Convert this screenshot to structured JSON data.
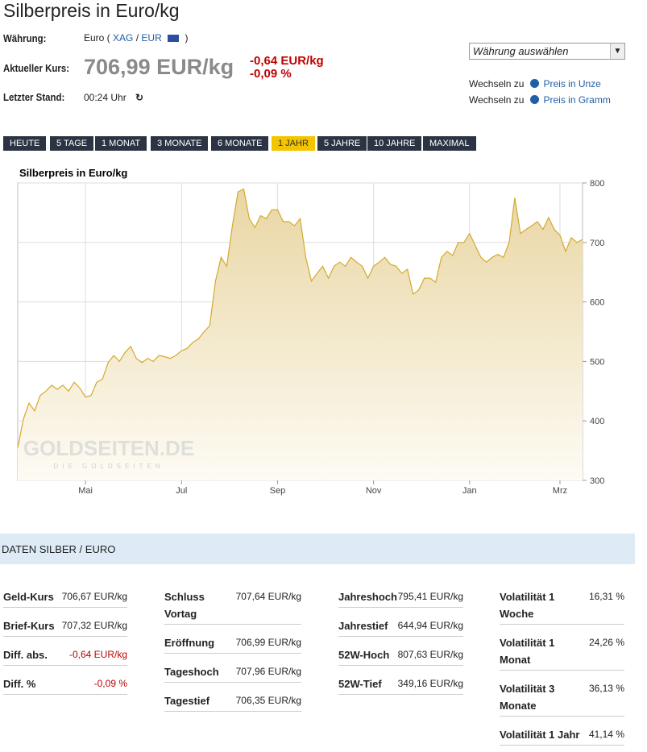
{
  "header": {
    "title": "Silberpreis in Euro/kg",
    "currency": {
      "label": "Währung:",
      "text": "Euro (",
      "links": [
        "XAG",
        "EUR"
      ],
      "sep": "/",
      "end": ")"
    },
    "price": {
      "label": "Aktueller Kurs:",
      "value": "706,99 EUR/kg",
      "change_abs": "-0,64 EUR/kg",
      "change_pct": "-0,09 %"
    },
    "stand": {
      "label": "Letzter Stand:",
      "value": "00:24 Uhr"
    },
    "select": "Währung auswählen",
    "switch": [
      {
        "text": "Wechseln zu",
        "link": "Preis in Unze"
      },
      {
        "text": "Wechseln zu",
        "link": "Preis in Gramm"
      }
    ]
  },
  "tabs": {
    "items": [
      "HEUTE",
      "5 TAGE",
      "1 MONAT",
      "3 MONATE",
      "6 MONATE",
      "1 JAHR",
      "5 JAHRE",
      "10 JAHRE",
      "MAXIMAL"
    ],
    "active": 5
  },
  "chart_data": {
    "type": "area",
    "title": "Silberpreis in Euro/kg",
    "watermark": [
      "GOLDSEITEN.DE",
      "DIE GOLDSEITEN"
    ],
    "color": "#d4a92e",
    "grid": true,
    "y_axis_side": "right",
    "categories": [
      null,
      null,
      null,
      null,
      null,
      null,
      null,
      null,
      null,
      null,
      null,
      null,
      "Mai",
      null,
      null,
      null,
      null,
      null,
      null,
      null,
      null,
      null,
      null,
      null,
      null,
      null,
      null,
      null,
      null,
      "Jul",
      null,
      null,
      null,
      null,
      null,
      null,
      null,
      null,
      null,
      null,
      null,
      null,
      null,
      null,
      null,
      null,
      "Sep",
      null,
      null,
      null,
      null,
      null,
      null,
      null,
      null,
      null,
      null,
      null,
      null,
      null,
      null,
      null,
      null,
      "Nov",
      null,
      null,
      null,
      null,
      null,
      null,
      null,
      null,
      null,
      null,
      null,
      null,
      null,
      null,
      null,
      null,
      "Jan",
      null,
      null,
      null,
      null,
      null,
      null,
      null,
      null,
      null,
      null,
      null,
      null,
      null,
      null,
      null,
      "Mrz",
      null,
      null,
      null,
      null
    ],
    "values": [
      355,
      403,
      430,
      417,
      443,
      450,
      460,
      453,
      460,
      450,
      465,
      455,
      440,
      443,
      465,
      470,
      498,
      510,
      500,
      515,
      525,
      505,
      498,
      505,
      500,
      510,
      508,
      505,
      510,
      518,
      522,
      532,
      538,
      550,
      560,
      635,
      675,
      660,
      728,
      785,
      790,
      740,
      725,
      745,
      740,
      755,
      755,
      735,
      735,
      728,
      740,
      675,
      635,
      648,
      660,
      640,
      660,
      667,
      660,
      675,
      667,
      660,
      640,
      660,
      667,
      675,
      663,
      660,
      648,
      655,
      613,
      620,
      640,
      640,
      633,
      675,
      685,
      678,
      700,
      700,
      715,
      695,
      675,
      667,
      675,
      680,
      675,
      700,
      775,
      715,
      722,
      728,
      735,
      722,
      742,
      722,
      712,
      685,
      708,
      700,
      705
    ],
    "ylim": [
      300,
      800
    ],
    "yticks": [
      300,
      400,
      500,
      600,
      700,
      800
    ]
  },
  "data_section": {
    "title": "DATEN SILBER / EURO",
    "columns": [
      [
        [
          "Geld-Kurs",
          "706,67 EUR/kg"
        ],
        [
          "Brief-Kurs",
          "707,32 EUR/kg"
        ],
        [
          "Diff. abs.",
          "-0,64 EUR/kg"
        ],
        [
          "Diff. %",
          "-0,09 %"
        ]
      ],
      [
        [
          "Schluss Vortag",
          "707,64 EUR/kg"
        ],
        [
          "Eröffnung",
          "706,99 EUR/kg"
        ],
        [
          "Tageshoch",
          "707,96 EUR/kg"
        ],
        [
          "Tagestief",
          "706,35 EUR/kg"
        ]
      ],
      [
        [
          "Jahreshoch",
          "795,41 EUR/kg"
        ],
        [
          "Jahrestief",
          "644,94 EUR/kg"
        ],
        [
          "52W-Hoch",
          "807,63 EUR/kg"
        ],
        [
          "52W-Tief",
          "349,16 EUR/kg"
        ]
      ],
      [
        [
          "Volatilität 1 Woche",
          "16,31 %"
        ],
        [
          "Volatilität 1 Monat",
          "24,26 %"
        ],
        [
          "Volatilität 3 Monate",
          "36,13 %"
        ],
        [
          "Volatilität 1 Jahr",
          "41,14 %"
        ]
      ]
    ]
  }
}
